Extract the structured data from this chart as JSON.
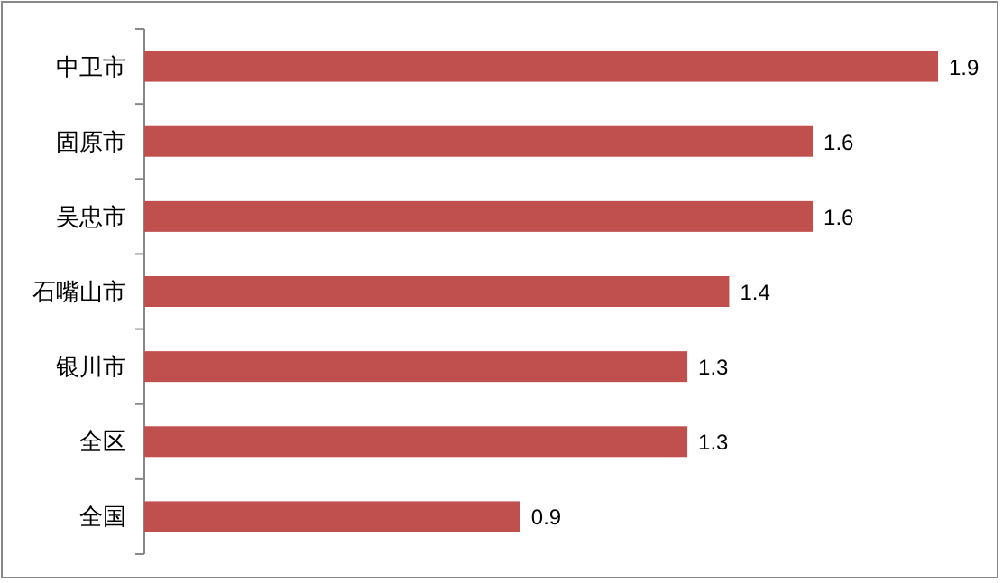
{
  "chart_data": {
    "type": "bar",
    "orientation": "horizontal",
    "categories": [
      "中卫市",
      "固原市",
      "吴忠市",
      "石嘴山市",
      "银川市",
      "全区",
      "全国"
    ],
    "values": [
      1.9,
      1.6,
      1.6,
      1.4,
      1.3,
      1.3,
      0.9
    ],
    "color": "#c0504d",
    "data_labels": true
  }
}
